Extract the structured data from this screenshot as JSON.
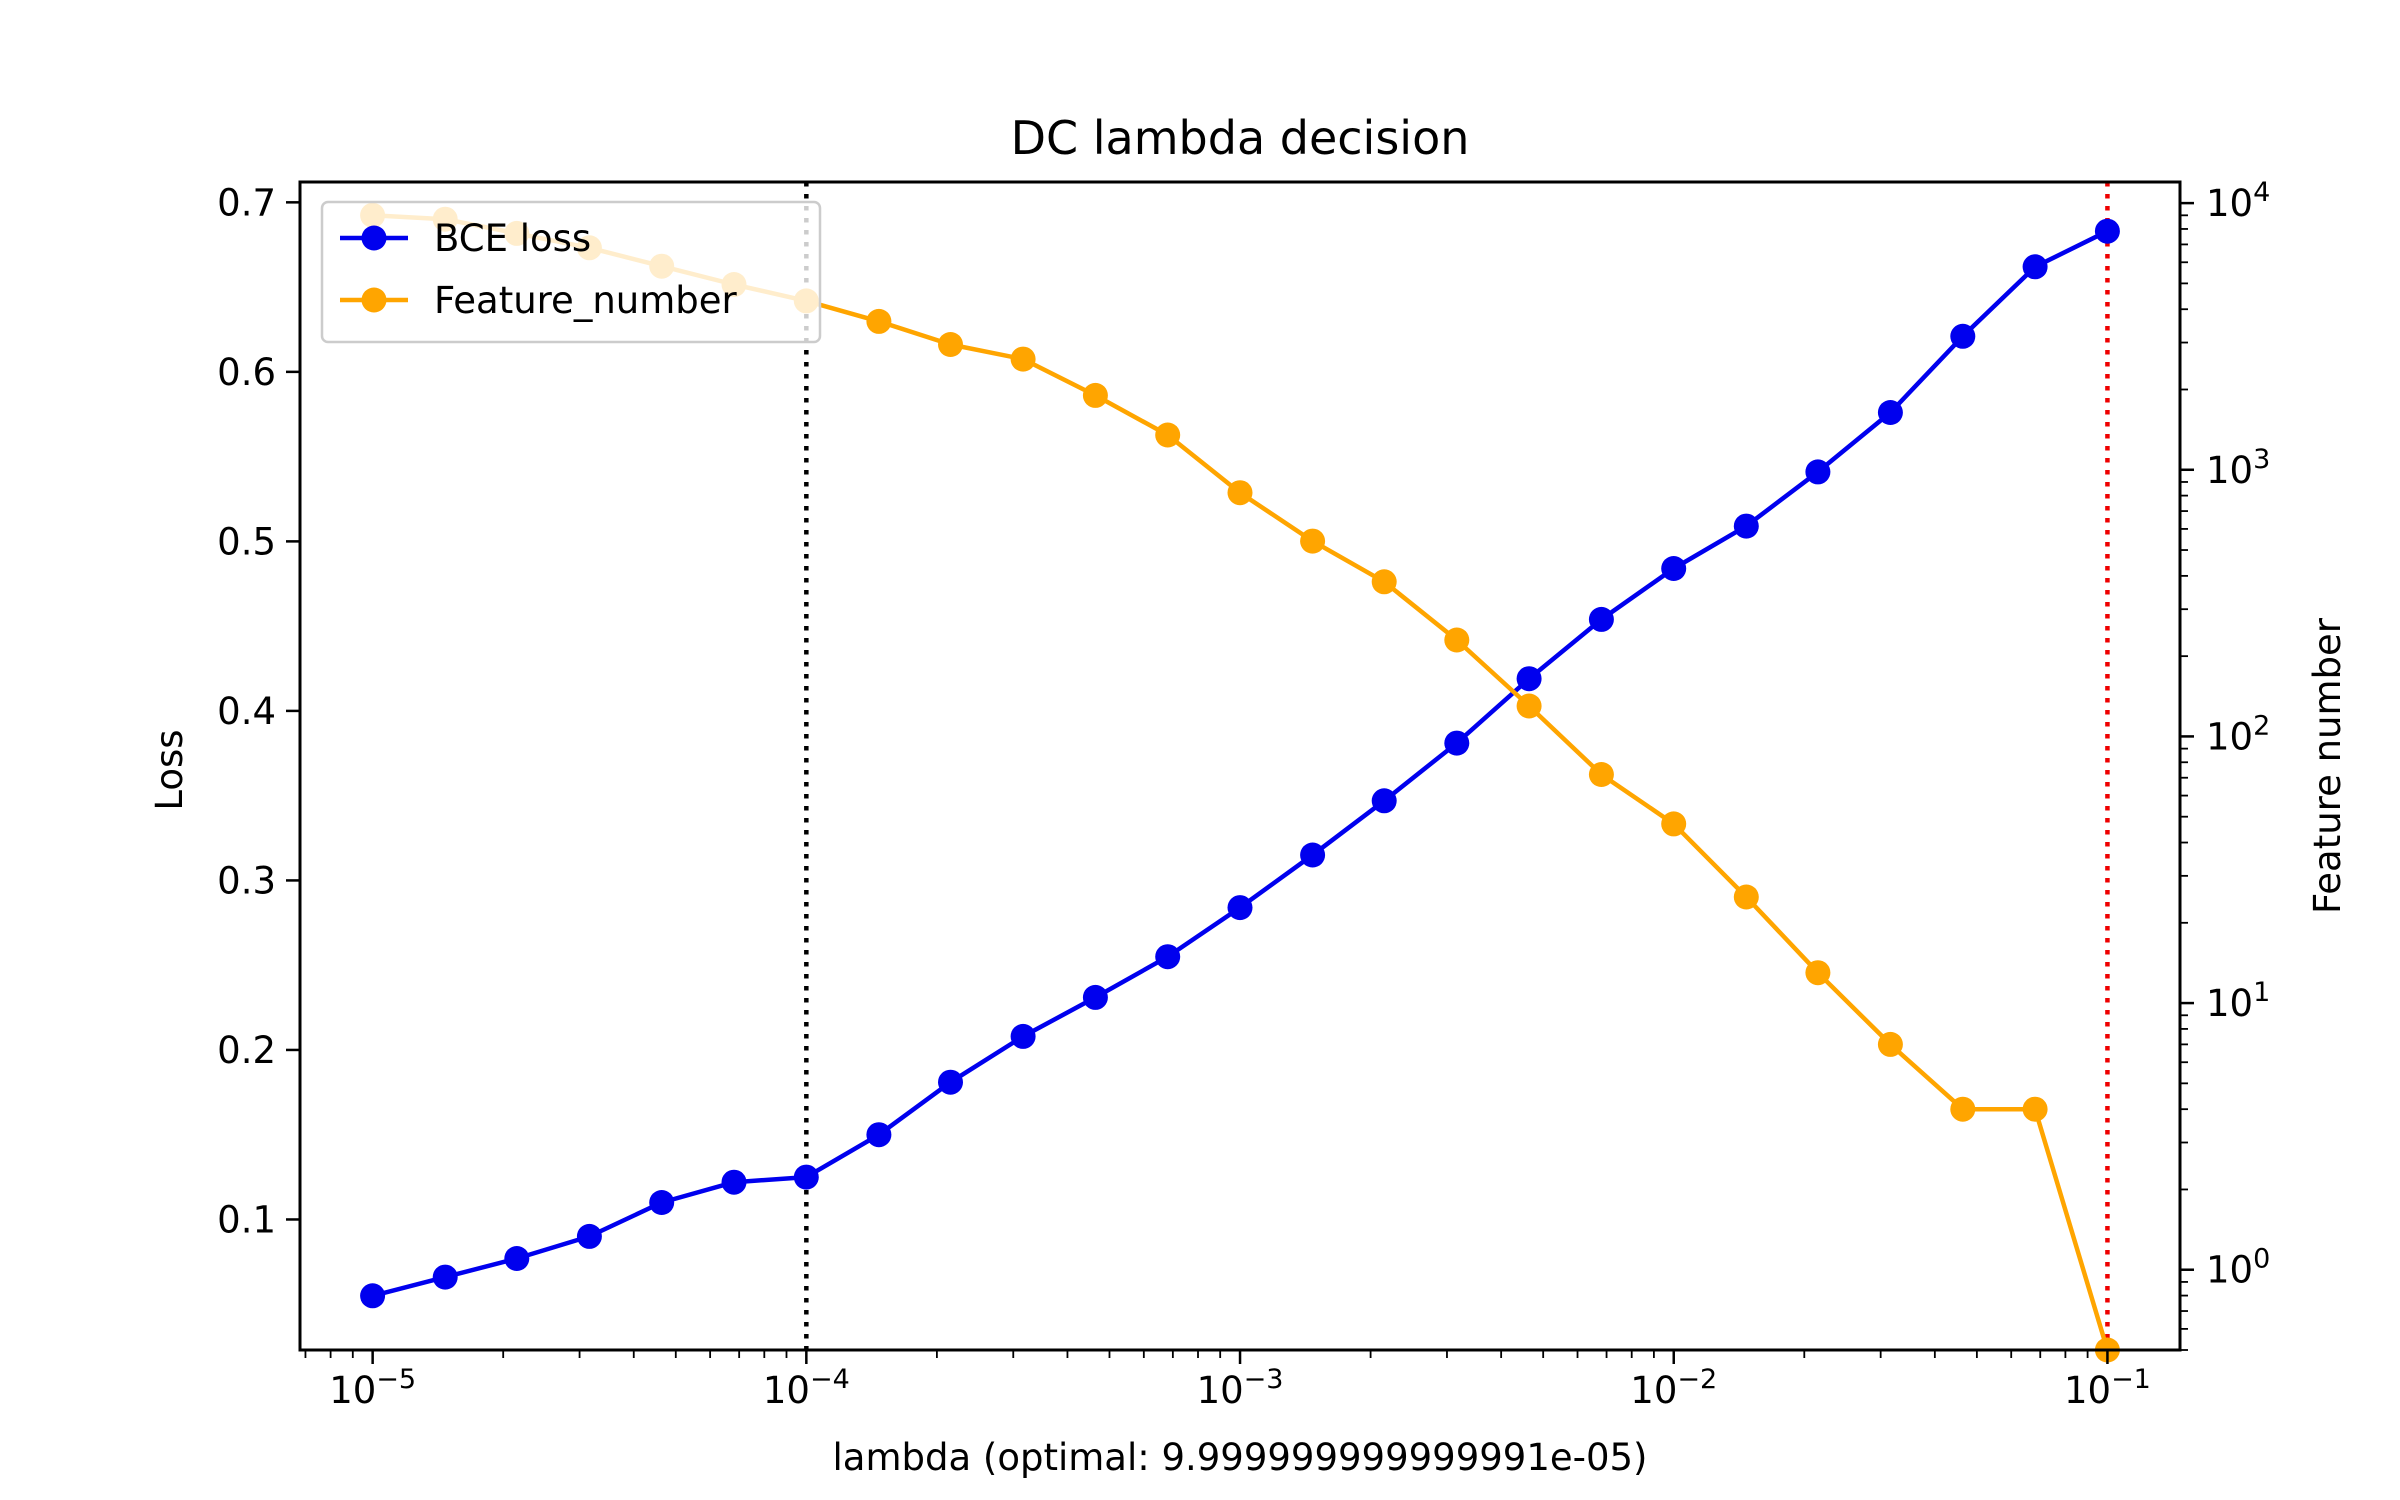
{
  "chart_data": {
    "type": "line",
    "title": "DC lambda decision",
    "xlabel": "lambda (optimal: 9.999999999999991e-05)",
    "ylabel": "Loss",
    "y2label": "Feature number",
    "x_scale": "log",
    "y2_scale": "log",
    "xlim": [
      6.8e-06,
      0.147
    ],
    "ylim": [
      0.023,
      0.712
    ],
    "y2lim": [
      0.5,
      12000
    ],
    "x_ticks": [
      {
        "value": 1e-05,
        "base": "10",
        "exp": "−5"
      },
      {
        "value": 0.0001,
        "base": "10",
        "exp": "−4"
      },
      {
        "value": 0.001,
        "base": "10",
        "exp": "−3"
      },
      {
        "value": 0.01,
        "base": "10",
        "exp": "−2"
      },
      {
        "value": 0.1,
        "base": "10",
        "exp": "−1"
      }
    ],
    "y_ticks": [
      {
        "value": 0.1,
        "label": "0.1"
      },
      {
        "value": 0.2,
        "label": "0.2"
      },
      {
        "value": 0.3,
        "label": "0.3"
      },
      {
        "value": 0.4,
        "label": "0.4"
      },
      {
        "value": 0.5,
        "label": "0.5"
      },
      {
        "value": 0.6,
        "label": "0.6"
      },
      {
        "value": 0.7,
        "label": "0.7"
      }
    ],
    "y2_ticks": [
      {
        "value": 1,
        "base": "10",
        "exp": "0"
      },
      {
        "value": 10,
        "base": "10",
        "exp": "1"
      },
      {
        "value": 100,
        "base": "10",
        "exp": "2"
      },
      {
        "value": 1000,
        "base": "10",
        "exp": "3"
      },
      {
        "value": 10000,
        "base": "10",
        "exp": "4"
      }
    ],
    "x": [
      1e-05,
      1.47e-05,
      2.15e-05,
      3.16e-05,
      4.64e-05,
      6.81e-05,
      0.0001,
      0.000147,
      0.000215,
      0.000316,
      0.000464,
      0.000681,
      0.001,
      0.00147,
      0.00215,
      0.00316,
      0.00464,
      0.00681,
      0.01,
      0.0147,
      0.0215,
      0.0316,
      0.0464,
      0.0681,
      0.1
    ],
    "series": [
      {
        "name": "BCE loss",
        "axis": "left",
        "color": "#0000ee",
        "values": [
          0.055,
          0.066,
          0.077,
          0.09,
          0.11,
          0.122,
          0.125,
          0.15,
          0.181,
          0.208,
          0.231,
          0.255,
          0.284,
          0.315,
          0.347,
          0.381,
          0.419,
          0.454,
          0.484,
          0.509,
          0.541,
          0.576,
          0.621,
          0.662,
          0.683
        ]
      },
      {
        "name": "Feature_number",
        "axis": "right",
        "color": "#ffa500",
        "values": [
          9000,
          8700,
          7700,
          6800,
          5800,
          4950,
          4300,
          3600,
          2950,
          2600,
          1900,
          1350,
          820,
          540,
          380,
          230,
          130,
          72,
          47,
          25,
          13,
          7,
          4,
          4,
          0.5
        ]
      }
    ],
    "vlines": [
      {
        "x": 0.0001,
        "color": "#000000",
        "style": "dotted"
      },
      {
        "x": 0.1,
        "color": "#ee0000",
        "style": "dotted"
      }
    ],
    "legend": {
      "position": "top-left"
    },
    "grid": false
  }
}
